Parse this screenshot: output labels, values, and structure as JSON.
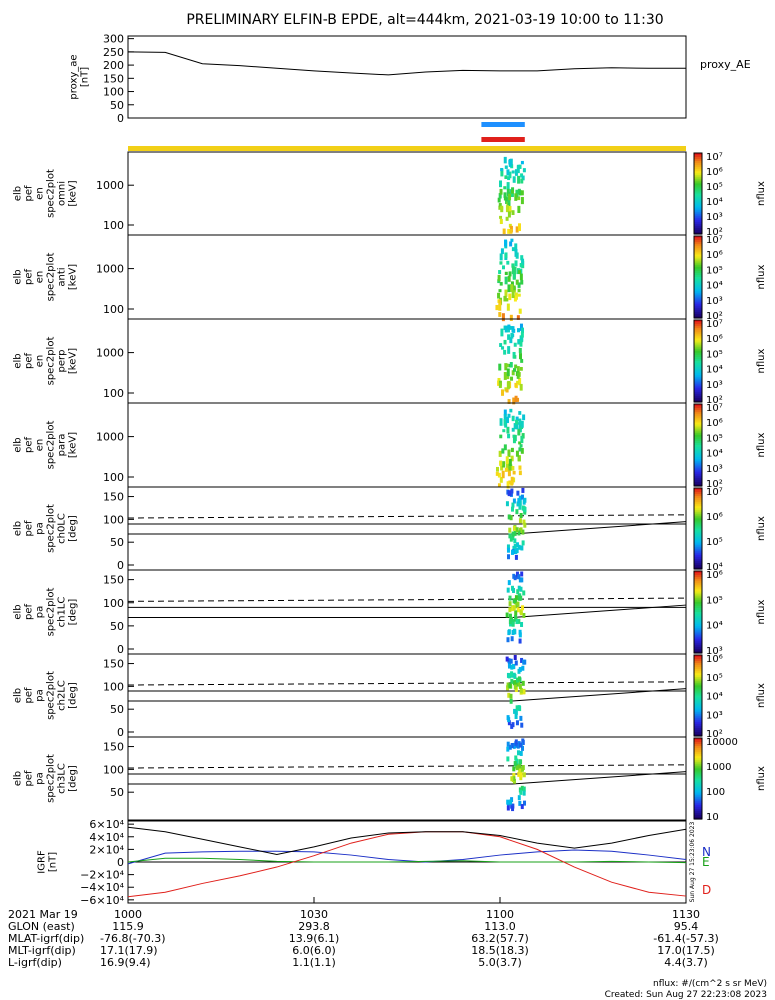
{
  "title": "PRELIMINARY ELFIN-B EPDE, alt=444km, 2021-03-19 10:00 to 11:30",
  "colors": {
    "science_bar": "#1e90ff",
    "science_bar2": "#e0201b",
    "orbit_bar": "#f2d018",
    "north": "#1b2fc6",
    "east": "#18a018",
    "down": "#e0201b",
    "total": "#000000"
  },
  "chart_data": [
    {
      "name": "proxy_ae",
      "type": "line",
      "ylabel": [
        "proxy_ae",
        "[nT]"
      ],
      "series_label": "proxy_AE",
      "yticks": [
        "0",
        "50",
        "100",
        "150",
        "200",
        "250",
        "300"
      ],
      "ylim": [
        0,
        310
      ],
      "x_minutes": [
        0,
        6,
        12,
        18,
        24,
        30,
        36,
        42,
        48,
        54,
        60,
        66,
        72,
        78,
        84,
        90
      ],
      "values": [
        250,
        248,
        205,
        198,
        188,
        178,
        170,
        163,
        174,
        180,
        178,
        178,
        186,
        190,
        188,
        188
      ]
    },
    {
      "name": "spectrogram_omni",
      "type": "heatmap",
      "ylabel": [
        "elb",
        "pef",
        "en",
        "spec2plot",
        "omni",
        "[keV]"
      ],
      "yticks": [
        "100",
        "1000"
      ],
      "colorbar_label": "nflux",
      "colorbar_ticks": [
        "10²",
        "10³",
        "10⁴",
        "10⁵",
        "10⁶",
        "10⁷"
      ]
    },
    {
      "name": "spectrogram_anti",
      "type": "heatmap",
      "ylabel": [
        "elb",
        "pef",
        "en",
        "spec2plot",
        "anti",
        "[keV]"
      ],
      "yticks": [
        "100",
        "1000"
      ],
      "colorbar_label": "nflux",
      "colorbar_ticks": [
        "10²",
        "10³",
        "10⁴",
        "10⁵",
        "10⁶",
        "10⁷"
      ]
    },
    {
      "name": "spectrogram_perp",
      "type": "heatmap",
      "ylabel": [
        "elb",
        "pef",
        "en",
        "spec2plot",
        "perp",
        "[keV]"
      ],
      "yticks": [
        "100",
        "1000"
      ],
      "colorbar_label": "nflux",
      "colorbar_ticks": [
        "10²",
        "10³",
        "10⁴",
        "10⁵",
        "10⁶",
        "10⁷"
      ]
    },
    {
      "name": "spectrogram_para",
      "type": "heatmap",
      "ylabel": [
        "elb",
        "pef",
        "en",
        "spec2plot",
        "para",
        "[keV]"
      ],
      "yticks": [
        "100",
        "1000"
      ],
      "colorbar_label": "nflux",
      "colorbar_ticks": [
        "10²",
        "10³",
        "10⁴",
        "10⁵",
        "10⁶",
        "10⁷"
      ]
    },
    {
      "name": "pitch_angle_ch0LC",
      "type": "heatmap",
      "ylabel": [
        "elb",
        "pef",
        "pa",
        "spec2plot",
        "ch0LC",
        "[deg]"
      ],
      "yticks": [
        "0",
        "50",
        "100",
        "150"
      ],
      "colorbar_label": "nflux",
      "colorbar_ticks": [
        "10⁴",
        "10⁵",
        "10⁶",
        "10⁷"
      ]
    },
    {
      "name": "pitch_angle_ch1LC",
      "type": "heatmap",
      "ylabel": [
        "elb",
        "pef",
        "pa",
        "spec2plot",
        "ch1LC",
        "[deg]"
      ],
      "yticks": [
        "0",
        "50",
        "100",
        "150"
      ],
      "colorbar_label": "nflux",
      "colorbar_ticks": [
        "10³",
        "10⁴",
        "10⁵",
        "10⁶"
      ]
    },
    {
      "name": "pitch_angle_ch2LC",
      "type": "heatmap",
      "ylabel": [
        "elb",
        "pef",
        "pa",
        "spec2plot",
        "ch2LC",
        "[deg]"
      ],
      "yticks": [
        "0",
        "50",
        "100",
        "150"
      ],
      "colorbar_label": "nflux",
      "colorbar_ticks": [
        "10²",
        "10³",
        "10⁴",
        "10⁵",
        "10⁶"
      ]
    },
    {
      "name": "pitch_angle_ch3LC",
      "type": "heatmap",
      "ylabel": [
        "elb",
        "pef",
        "pa",
        "spec2plot",
        "ch3LC",
        "[deg]"
      ],
      "yticks": [
        "50",
        "100",
        "150"
      ],
      "colorbar_label": "nflux",
      "colorbar_ticks": [
        "10",
        "100",
        "1000",
        "10000"
      ]
    },
    {
      "name": "igrf_field",
      "type": "line",
      "ylabel": [
        "IGRF",
        "[nT]"
      ],
      "yticks": [
        "−6×10⁴",
        "−4×10⁴",
        "−2×10⁴",
        "0",
        "2×10⁴",
        "4×10⁴",
        "6×10⁴"
      ],
      "ylim": [
        -65000,
        65000
      ],
      "side_text": "Sun Aug 27 15:23:06 2023",
      "x_minutes": [
        0,
        6,
        12,
        18,
        24,
        30,
        36,
        42,
        48,
        54,
        60,
        66,
        72,
        78,
        84,
        90
      ],
      "series": [
        {
          "name": "N",
          "values": [
            -3000,
            14000,
            16000,
            17000,
            17000,
            16000,
            11000,
            4000,
            0,
            4000,
            11000,
            16000,
            19000,
            17000,
            11000,
            4000
          ]
        },
        {
          "name": "E",
          "values": [
            0,
            6000,
            6000,
            4000,
            1000,
            0,
            0,
            0,
            1000,
            2000,
            0,
            0,
            0,
            1000,
            0,
            -1000
          ]
        },
        {
          "name": "D",
          "values": [
            -55000,
            -48000,
            -34000,
            -22000,
            -8000,
            10000,
            30000,
            44000,
            48000,
            48000,
            40000,
            20000,
            -8000,
            -32000,
            -48000,
            -54000
          ]
        },
        {
          "name": "",
          "values": [
            55000,
            48000,
            36000,
            24000,
            12000,
            24000,
            38000,
            46000,
            48000,
            48000,
            42000,
            30000,
            22000,
            30000,
            42000,
            52000
          ]
        }
      ]
    }
  ],
  "footer": {
    "row_labels": [
      "2021 Mar 19",
      "GLON (east)",
      "MLAT-igrf(dip)",
      "MLT-igrf(dip)",
      "L-igrf(dip)"
    ],
    "overlap_prefix": [
      "",
      "",
      "-76.8(-70.3)",
      "17.1(17.9)",
      "16.9(9.4)"
    ],
    "columns": [
      {
        "time": "1000",
        "values": [
          "115.9",
          "",
          "",
          ""
        ]
      },
      {
        "time": "1030",
        "values": [
          "293.8",
          "13.9(6.1)",
          "6.0(6.0)",
          "1.1(1.1)"
        ]
      },
      {
        "time": "1100",
        "values": [
          "113.0",
          "63.2(57.7)",
          "18.5(18.3)",
          "5.0(3.7)"
        ]
      },
      {
        "time": "1130",
        "values": [
          "95.4",
          "-61.4(-57.3)",
          "17.0(17.5)",
          "4.4(3.7)"
        ]
      }
    ],
    "units_note": "nflux: #/(cm^2 s sr MeV)",
    "created": "Created: Sun Aug 27 22:23:08 2023"
  }
}
